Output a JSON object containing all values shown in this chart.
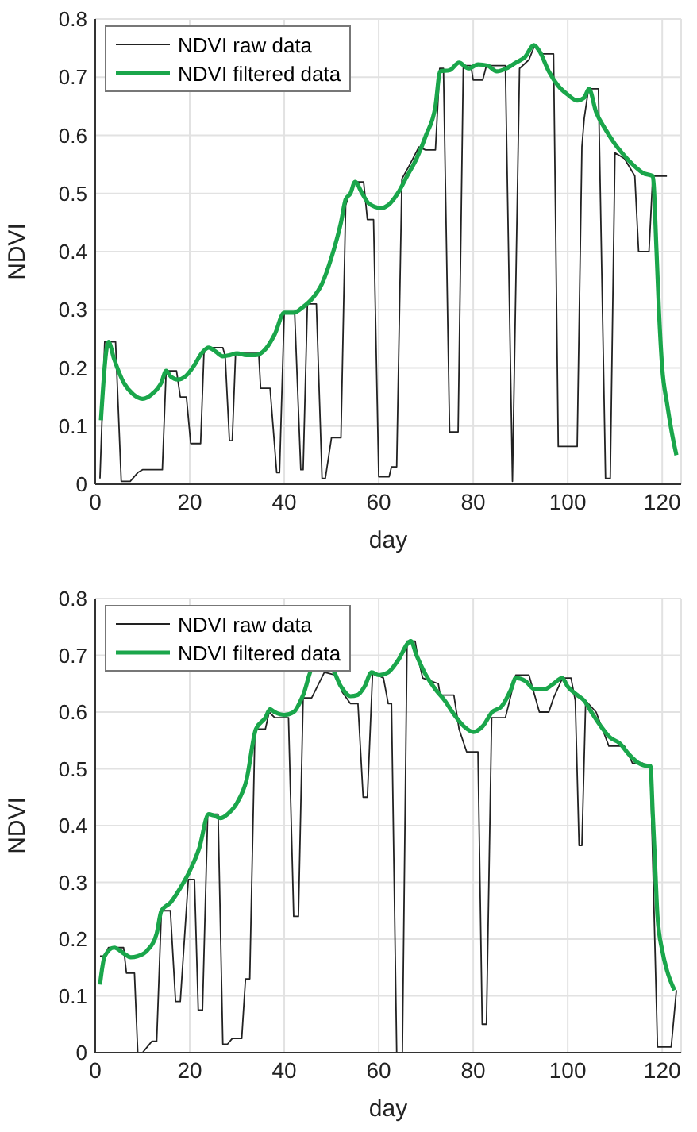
{
  "chart_data": [
    {
      "type": "line",
      "xlabel": "day",
      "ylabel": "NDVI",
      "xlim": [
        0,
        124
      ],
      "ylim": [
        0,
        0.8
      ],
      "xticks": [
        0,
        20,
        40,
        60,
        80,
        100,
        120
      ],
      "yticks": [
        0,
        0.1,
        0.2,
        0.3,
        0.4,
        0.5,
        0.6,
        0.7,
        0.8
      ],
      "grid": true,
      "legend": "top left",
      "marker": "none",
      "series": [
        {
          "name": "NDVI raw data",
          "color": "#222222",
          "x": [
            1,
            2,
            4.3,
            5.5,
            7.4,
            9,
            10,
            14.2,
            15,
            17.2,
            18,
            19.3,
            20.2,
            22.3,
            23,
            23.7,
            27,
            27.5,
            28.4,
            29,
            29.7,
            34.6,
            35,
            37,
            38.4,
            39,
            40,
            42.2,
            43.5,
            44,
            44.9,
            46.8,
            48,
            48.7,
            50,
            52,
            53,
            54.7,
            56.8,
            57.6,
            58.9,
            60,
            62.2,
            62.7,
            63.8,
            64.9,
            66.6,
            68.5,
            69.9,
            72,
            72.9,
            73.7,
            75,
            76.8,
            77.9,
            79.5,
            80,
            82,
            82.8,
            86.8,
            88.3,
            89.8,
            91.8,
            93,
            94.5,
            97,
            98,
            102,
            103,
            103.5,
            104.4,
            106.5,
            108,
            109,
            110,
            112,
            114.2,
            115,
            117.2,
            118,
            121
          ],
          "values": [
            0.01,
            0.245,
            0.245,
            0.005,
            0.005,
            0.02,
            0.025,
            0.025,
            0.195,
            0.195,
            0.15,
            0.15,
            0.07,
            0.07,
            0.225,
            0.235,
            0.235,
            0.22,
            0.075,
            0.075,
            0.225,
            0.225,
            0.165,
            0.165,
            0.02,
            0.02,
            0.295,
            0.295,
            0.025,
            0.025,
            0.31,
            0.31,
            0.01,
            0.01,
            0.08,
            0.08,
            0.48,
            0.52,
            0.52,
            0.455,
            0.455,
            0.013,
            0.013,
            0.03,
            0.03,
            0.525,
            0.55,
            0.58,
            0.575,
            0.575,
            0.715,
            0.715,
            0.09,
            0.09,
            0.72,
            0.72,
            0.695,
            0.695,
            0.72,
            0.72,
            0.005,
            0.715,
            0.73,
            0.755,
            0.74,
            0.74,
            0.065,
            0.065,
            0.58,
            0.63,
            0.68,
            0.68,
            0.01,
            0.01,
            0.57,
            0.56,
            0.53,
            0.4,
            0.4,
            0.53,
            0.53
          ]
        },
        {
          "name": "NDVI filtered data",
          "color": "#1aa64b",
          "x": [
            1.2,
            2.8,
            4,
            6,
            8,
            10,
            12,
            14,
            15,
            16,
            17.5,
            19,
            21,
            22.5,
            24,
            25.5,
            27,
            28.5,
            30,
            32,
            34,
            36,
            38,
            40,
            42,
            44,
            46,
            48,
            50,
            52,
            53,
            54,
            55,
            56.5,
            58,
            60.5,
            62,
            64,
            66,
            68,
            70,
            72,
            73,
            75,
            77,
            79,
            81,
            83,
            85,
            87,
            89,
            91,
            92.8,
            94,
            96,
            98,
            100,
            102,
            103.5,
            104.5,
            106,
            108,
            110,
            112,
            114,
            116,
            118,
            118.8,
            119.3,
            120,
            121,
            122,
            123
          ],
          "values": [
            0.11,
            0.245,
            0.215,
            0.175,
            0.155,
            0.147,
            0.155,
            0.175,
            0.195,
            0.185,
            0.18,
            0.185,
            0.205,
            0.225,
            0.235,
            0.228,
            0.22,
            0.222,
            0.225,
            0.222,
            0.222,
            0.232,
            0.258,
            0.295,
            0.295,
            0.305,
            0.32,
            0.345,
            0.39,
            0.45,
            0.49,
            0.5,
            0.52,
            0.5,
            0.482,
            0.475,
            0.48,
            0.5,
            0.53,
            0.56,
            0.6,
            0.65,
            0.71,
            0.712,
            0.725,
            0.715,
            0.722,
            0.72,
            0.71,
            0.715,
            0.725,
            0.735,
            0.755,
            0.745,
            0.71,
            0.685,
            0.67,
            0.66,
            0.665,
            0.68,
            0.64,
            0.61,
            0.585,
            0.565,
            0.548,
            0.535,
            0.53,
            0.4,
            0.3,
            0.2,
            0.14,
            0.09,
            0.05
          ]
        }
      ]
    },
    {
      "type": "line",
      "xlabel": "day",
      "ylabel": "NDVI",
      "xlim": [
        0,
        124
      ],
      "ylim": [
        0,
        0.8
      ],
      "xticks": [
        0,
        20,
        40,
        60,
        80,
        100,
        120
      ],
      "yticks": [
        0,
        0.1,
        0.2,
        0.3,
        0.4,
        0.5,
        0.6,
        0.7,
        0.8
      ],
      "grid": true,
      "legend": "top left",
      "marker": "none",
      "series": [
        {
          "name": "NDVI raw data",
          "color": "#222222",
          "x": [
            1,
            2,
            2.8,
            6,
            6.6,
            8.3,
            9,
            10,
            11,
            12,
            13,
            14,
            15.9,
            17,
            18,
            19.7,
            21,
            21.8,
            22.7,
            23.8,
            26,
            27,
            28,
            29,
            31,
            31.8,
            32.7,
            33.8,
            36,
            36.8,
            38,
            40.9,
            42,
            43,
            44,
            45.8,
            48.5,
            51,
            52.3,
            54,
            55.6,
            56.7,
            57.6,
            58.7,
            61,
            62,
            62.7,
            63.8,
            65,
            66,
            67.7,
            68.2,
            69.3,
            72.6,
            73,
            75.9,
            77,
            78.6,
            81,
            81.9,
            82.8,
            83.9,
            86.8,
            87.4,
            89,
            91.8,
            94,
            96,
            97,
            98.9,
            100.7,
            101.6,
            102.4,
            103,
            103.8,
            106,
            108.7,
            110.9,
            112,
            113.7,
            115.9,
            117.5,
            119,
            121.9,
            123
          ],
          "values": [
            0.17,
            0.17,
            0.185,
            0.185,
            0.14,
            0.14,
            0,
            0,
            0.01,
            0.02,
            0.02,
            0.25,
            0.25,
            0.09,
            0.09,
            0.305,
            0.305,
            0.075,
            0.075,
            0.42,
            0.42,
            0.015,
            0.015,
            0.025,
            0.025,
            0.13,
            0.13,
            0.57,
            0.57,
            0.6,
            0.59,
            0.59,
            0.24,
            0.24,
            0.625,
            0.625,
            0.67,
            0.665,
            0.635,
            0.615,
            0.615,
            0.45,
            0.45,
            0.67,
            0.66,
            0.615,
            0.615,
            0,
            0,
            0.725,
            0.725,
            0.7,
            0.66,
            0.65,
            0.63,
            0.63,
            0.57,
            0.53,
            0.53,
            0.05,
            0.05,
            0.59,
            0.59,
            0.61,
            0.665,
            0.665,
            0.6,
            0.6,
            0.625,
            0.66,
            0.66,
            0.62,
            0.365,
            0.365,
            0.62,
            0.6,
            0.54,
            0.54,
            0.54,
            0.51,
            0.51,
            0.5,
            0.01,
            0.01,
            0.11
          ]
        },
        {
          "name": "NDVI filtered data",
          "color": "#1aa64b",
          "x": [
            1,
            2,
            4,
            6,
            7.5,
            9,
            11,
            13,
            14,
            16,
            18,
            20,
            22,
            24,
            25,
            26.5,
            28,
            30,
            32,
            34,
            36,
            37,
            38,
            40,
            42,
            44,
            46,
            50,
            52,
            54,
            55.5,
            57,
            58.5,
            60,
            62,
            64,
            66.8,
            68,
            70,
            72,
            74,
            76,
            78,
            80,
            82,
            84,
            86,
            88,
            89,
            91,
            93,
            95,
            97,
            98.8,
            100,
            102,
            103.5,
            105,
            107,
            109,
            111,
            113,
            115,
            117,
            117.5,
            118,
            118.5,
            119,
            120,
            121,
            122.6
          ],
          "values": [
            0.12,
            0.17,
            0.185,
            0.175,
            0.168,
            0.17,
            0.18,
            0.21,
            0.25,
            0.265,
            0.29,
            0.32,
            0.36,
            0.42,
            0.418,
            0.413,
            0.42,
            0.44,
            0.48,
            0.57,
            0.59,
            0.605,
            0.6,
            0.595,
            0.6,
            0.63,
            0.675,
            0.675,
            0.645,
            0.628,
            0.63,
            0.645,
            0.67,
            0.665,
            0.67,
            0.69,
            0.725,
            0.7,
            0.665,
            0.64,
            0.62,
            0.595,
            0.575,
            0.565,
            0.575,
            0.6,
            0.61,
            0.64,
            0.66,
            0.655,
            0.64,
            0.64,
            0.65,
            0.66,
            0.645,
            0.63,
            0.62,
            0.6,
            0.575,
            0.555,
            0.545,
            0.525,
            0.51,
            0.505,
            0.505,
            0.42,
            0.33,
            0.24,
            0.18,
            0.145,
            0.11
          ]
        }
      ]
    }
  ]
}
